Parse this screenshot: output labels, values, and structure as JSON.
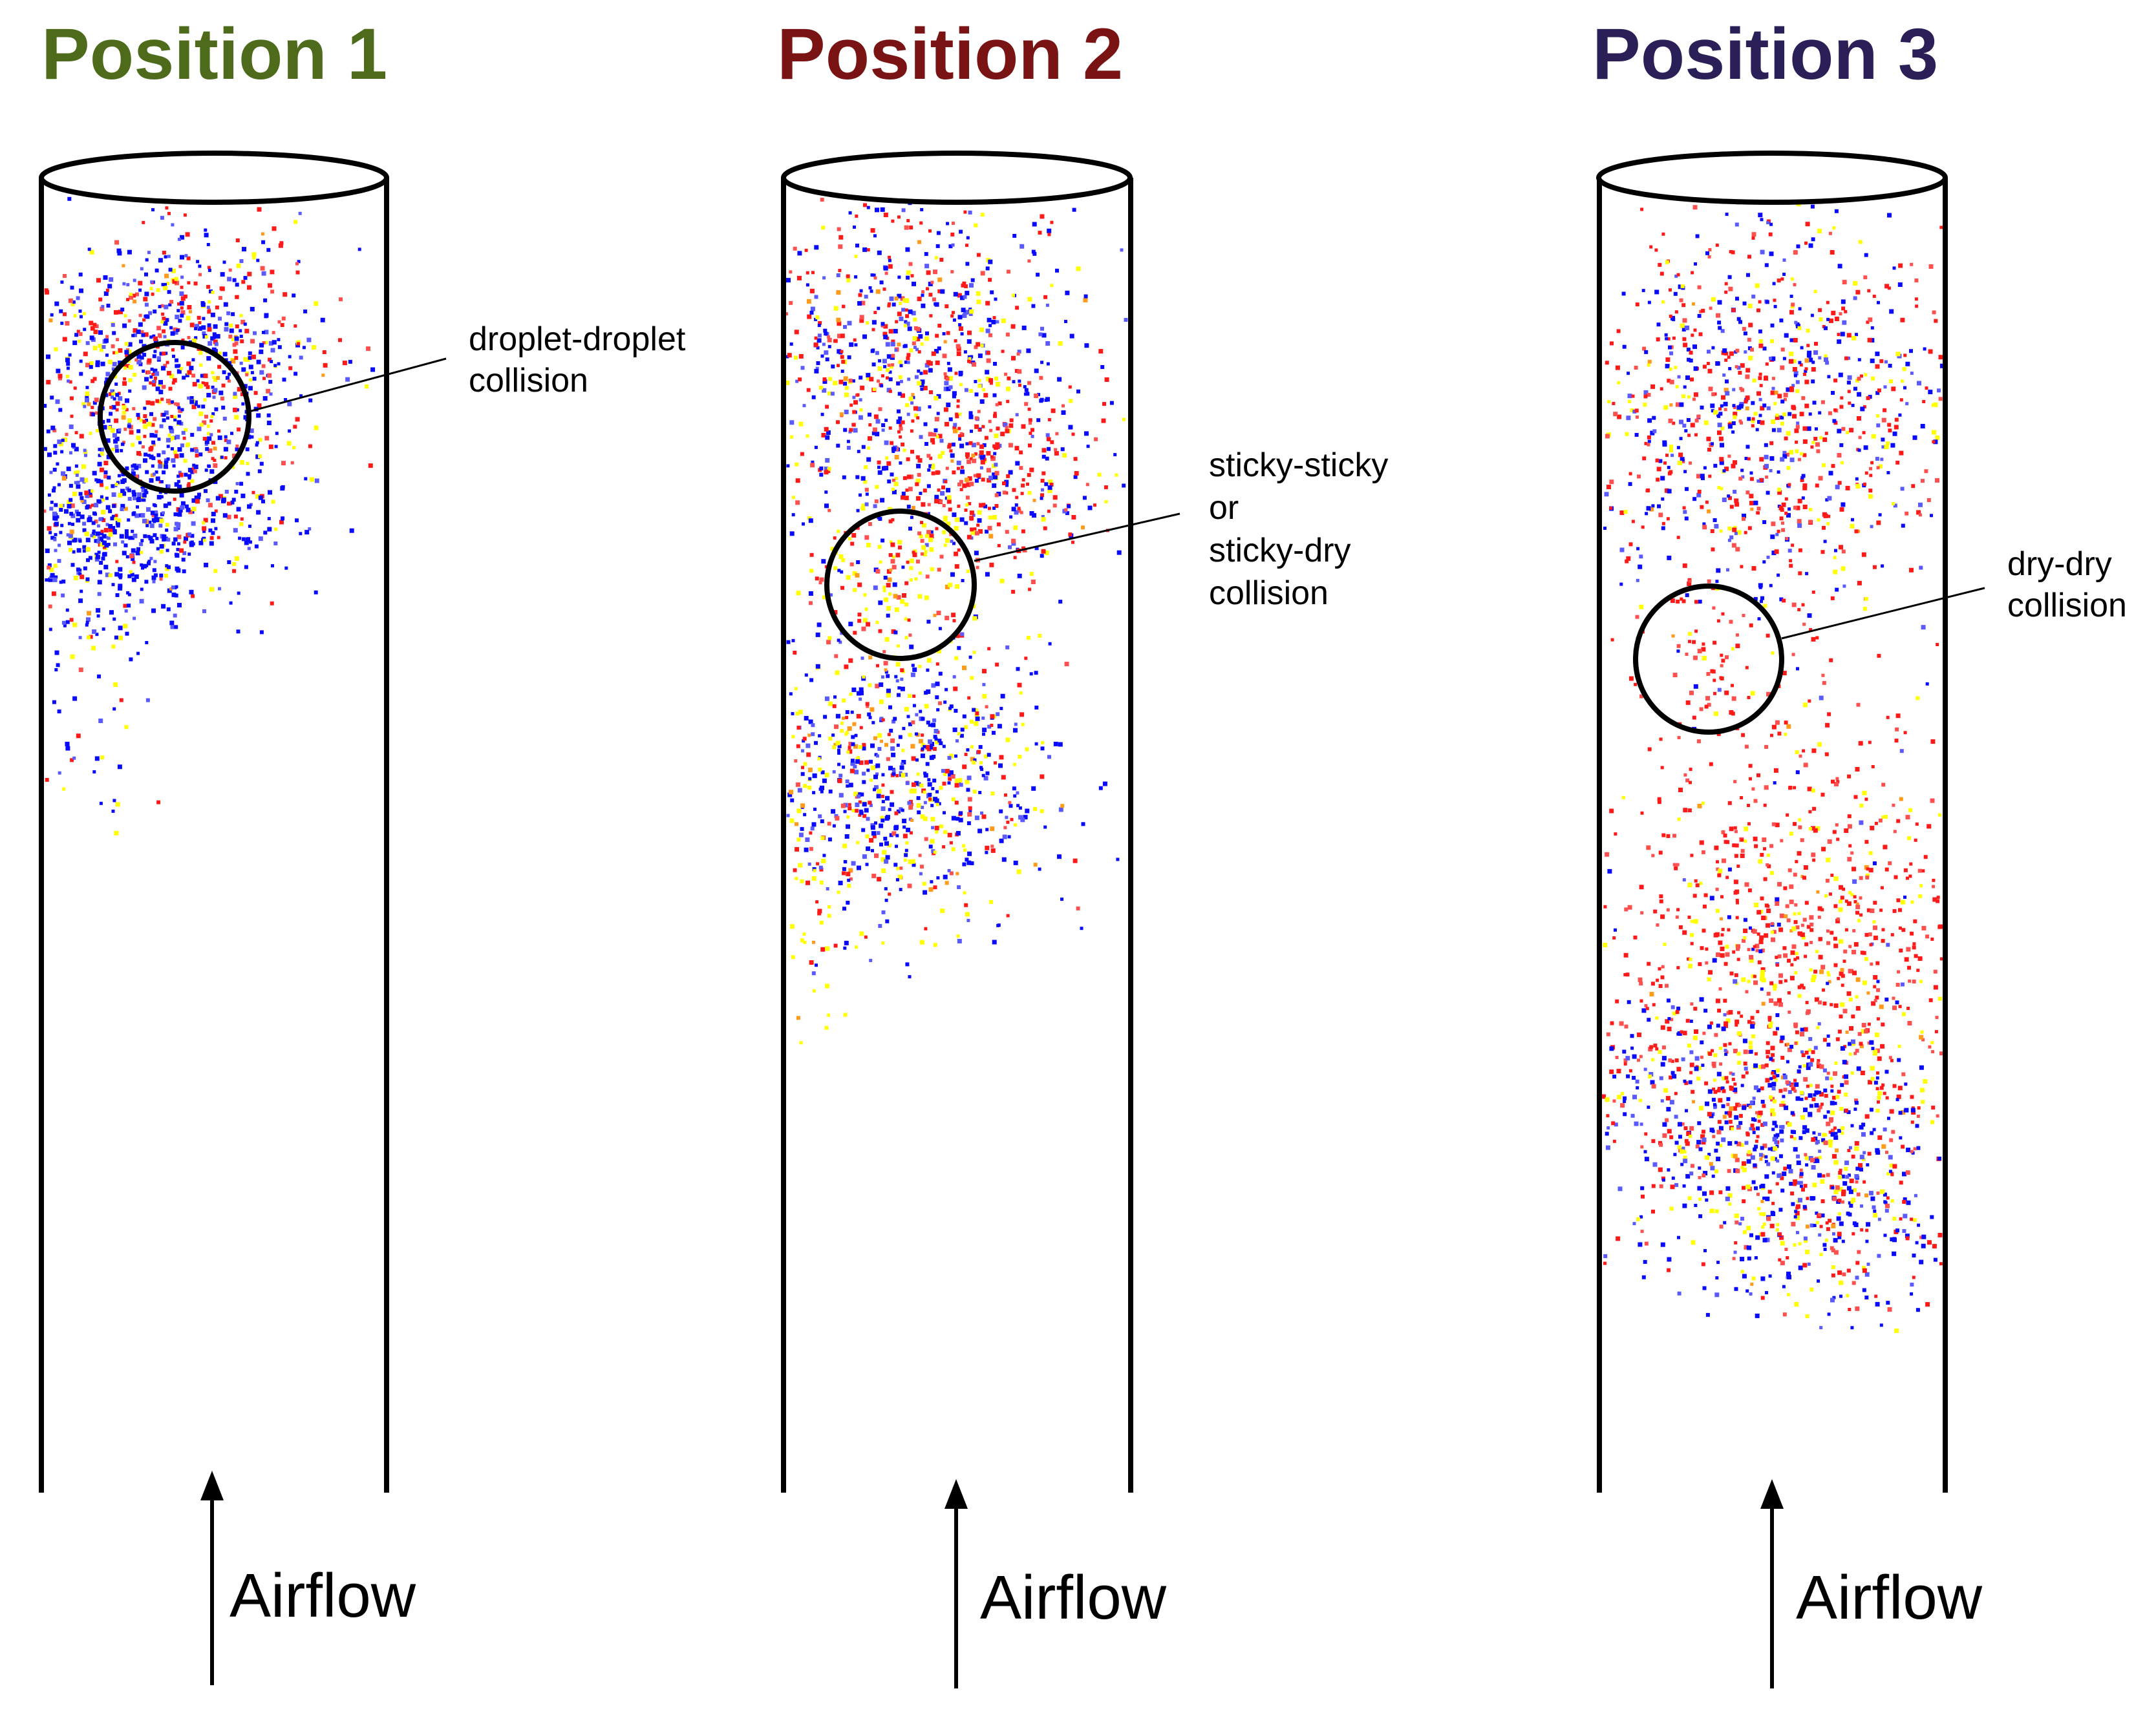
{
  "colors": {
    "title_1": "#4d6b1a",
    "title_2": "#7a1414",
    "title_3": "#2b1f57",
    "particle_palette": [
      "#0a0aff",
      "#5a5aff",
      "#ff1a1a",
      "#ff5050",
      "#ffff00",
      "#ff9a1a"
    ]
  },
  "panels": [
    {
      "title": "Position 1",
      "annotation": [
        "droplet-droplet",
        "collision"
      ],
      "airflow_label": "Airflow",
      "clusters": [
        {
          "mix": {
            "blue": 0.45,
            "red": 0.35,
            "yellow": 0.2
          }
        },
        {
          "mix": {
            "blue": 0.85,
            "red": 0.08,
            "yellow": 0.07
          }
        },
        {
          "mix": {
            "blue": 0.6,
            "red": 0.15,
            "yellow": 0.25
          }
        }
      ]
    },
    {
      "title": "Position 2",
      "annotation": [
        "sticky-sticky",
        "or",
        "sticky-dry",
        "collision"
      ],
      "airflow_label": "Airflow",
      "clusters": [
        {
          "mix": {
            "blue": 0.5,
            "red": 0.35,
            "yellow": 0.15
          }
        },
        {
          "mix": {
            "blue": 0.2,
            "red": 0.65,
            "yellow": 0.15
          }
        },
        {
          "mix": {
            "blue": 0.1,
            "red": 0.35,
            "yellow": 0.55
          }
        },
        {
          "mix": {
            "blue": 0.55,
            "red": 0.2,
            "yellow": 0.25
          }
        },
        {
          "mix": {
            "blue": 0.05,
            "red": 0.15,
            "yellow": 0.8
          }
        }
      ]
    },
    {
      "title": "Position 3",
      "annotation": [
        "dry-dry",
        "collision"
      ],
      "airflow_label": "Airflow",
      "clusters": [
        {
          "mix": {
            "blue": 0.4,
            "red": 0.45,
            "yellow": 0.15
          }
        },
        {
          "mix": {
            "blue": 0.0,
            "red": 0.95,
            "yellow": 0.05
          }
        },
        {
          "mix": {
            "blue": 0.05,
            "red": 0.75,
            "yellow": 0.2
          }
        },
        {
          "mix": {
            "blue": 0.5,
            "red": 0.4,
            "yellow": 0.1
          }
        },
        {
          "mix": {
            "blue": 0.55,
            "red": 0.25,
            "yellow": 0.2
          }
        }
      ]
    }
  ]
}
